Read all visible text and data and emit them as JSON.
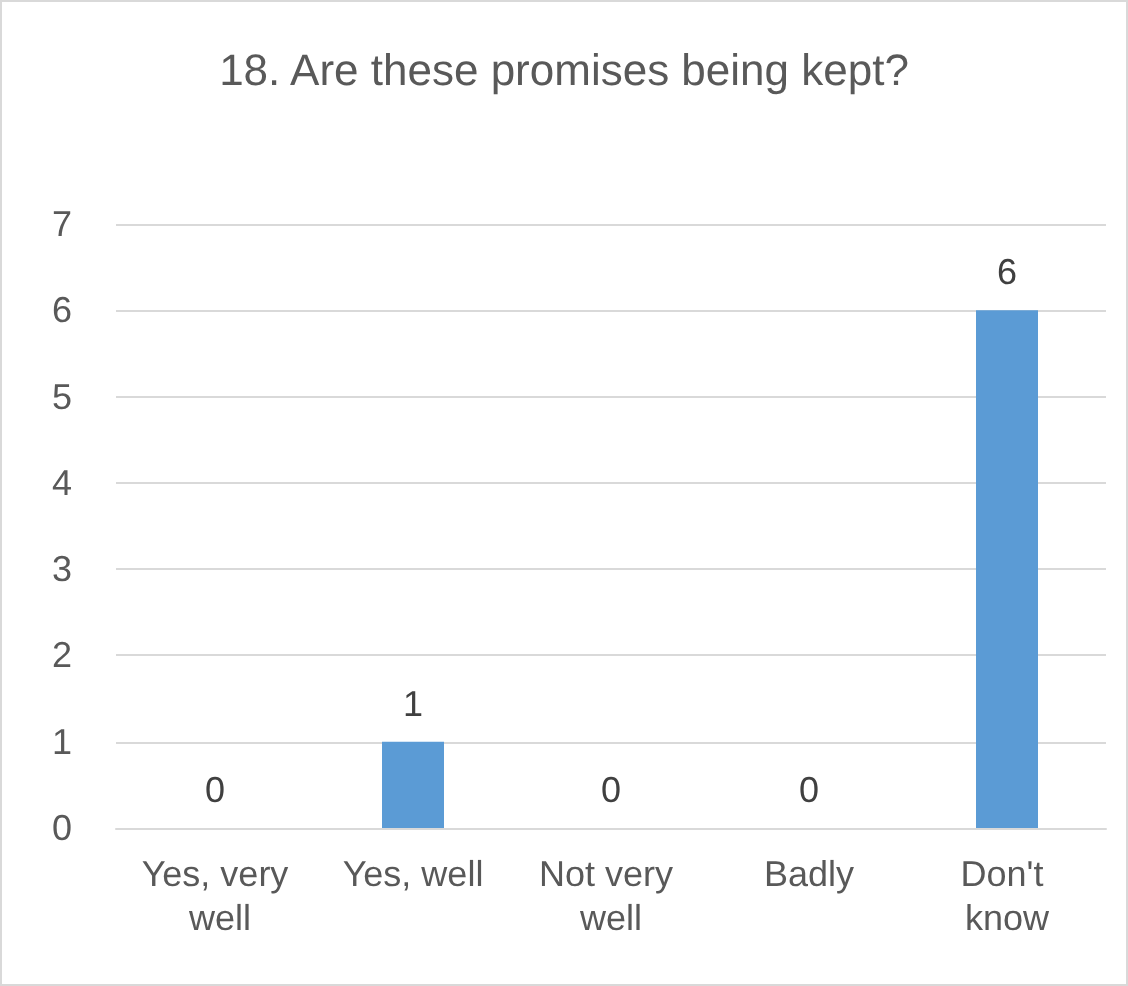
{
  "chart_data": {
    "type": "bar",
    "title": "18. Are these promises being kept?",
    "categories": [
      "Yes, very well",
      "Yes, well",
      "Not very well",
      "Badly",
      "Don't know"
    ],
    "values": [
      0,
      1,
      0,
      0,
      6
    ],
    "color": "#5b9bd5",
    "ylim": [
      0,
      7
    ],
    "yticks": [
      0,
      1,
      2,
      3,
      4,
      5,
      6,
      7
    ],
    "grid": "y",
    "data_labels": true
  }
}
